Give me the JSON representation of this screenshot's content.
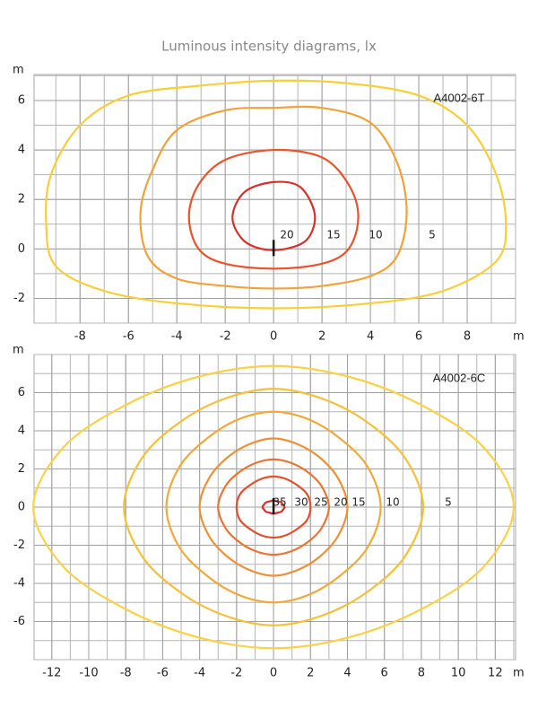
{
  "title": "Luminous intensity diagrams, lx",
  "chart_data": [
    {
      "type": "contour",
      "annotation": "A4002-6T",
      "x_unit": "m",
      "y_unit": "m",
      "xlim": [
        -9.9,
        10
      ],
      "ylim": [
        -3,
        7.05
      ],
      "xticks": [
        -8,
        -6,
        -4,
        -2,
        0,
        2,
        4,
        6,
        8
      ],
      "yticks": [
        -2,
        0,
        2,
        4,
        6
      ],
      "grid_step": 1,
      "contours": [
        {
          "level": 5,
          "color": "#f7cf3a",
          "x": [
            0,
            3,
            6,
            8,
            9.2,
            9.6,
            9.2,
            7,
            4,
            0,
            -4,
            -7,
            -9,
            -9.4,
            -9.2,
            -8,
            -6,
            -3
          ],
          "y": [
            6.8,
            6.7,
            6.2,
            5,
            3,
            1,
            -0.5,
            -1.7,
            -2.2,
            -2.4,
            -2.2,
            -1.7,
            -0.7,
            1,
            3,
            5,
            6.2,
            6.6
          ]
        },
        {
          "level": 10,
          "color": "#f2a23c",
          "x": [
            0,
            2,
            4,
            5.1,
            5.5,
            5.1,
            4,
            2,
            0,
            -2,
            -4,
            -5.2,
            -5.5,
            -5,
            -4,
            -2
          ],
          "y": [
            5.7,
            5.7,
            5.1,
            3.5,
            1.5,
            -0.3,
            -1.1,
            -1.5,
            -1.6,
            -1.5,
            -1.2,
            -0.3,
            1.5,
            3.2,
            4.8,
            5.6
          ]
        },
        {
          "level": 15,
          "color": "#e8552c",
          "x": [
            0,
            2,
            3.1,
            3.5,
            3.1,
            2,
            0,
            -2,
            -3.1,
            -3.5,
            -3.1,
            -2
          ],
          "y": [
            4,
            3.7,
            2.6,
            1.3,
            0,
            -0.6,
            -0.8,
            -0.6,
            0,
            1.3,
            2.6,
            3.6
          ]
        },
        {
          "level": 20,
          "color": "#d8302a",
          "x": [
            0,
            1.1,
            1.7,
            1.4,
            0.5,
            -0.5,
            -1.3,
            -1.7,
            -1.2
          ],
          "y": [
            2.7,
            2.5,
            1.4,
            0.4,
            0,
            0,
            0.4,
            1.3,
            2.3
          ]
        }
      ]
    },
    {
      "type": "contour",
      "annotation": "A4002-6C",
      "x_unit": "m",
      "y_unit": "m",
      "xlim": [
        -12.96,
        13.1
      ],
      "ylim": [
        -8,
        8
      ],
      "xticks": [
        -12,
        -10,
        -8,
        -6,
        -4,
        -2,
        0,
        2,
        4,
        6,
        8,
        10,
        12
      ],
      "yticks": [
        -6,
        -4,
        -2,
        0,
        2,
        4,
        6
      ],
      "grid_step": 1,
      "contours": [
        {
          "level": 5,
          "color": "#f7d24a",
          "x": [
            13,
            11.4,
            8.1,
            4.2,
            0,
            -4.2,
            -8.1,
            -11.4,
            -13,
            -11.4,
            -8.1,
            -4.2,
            0,
            4.2,
            8.1,
            11.4
          ],
          "y": [
            0,
            3.1,
            5.3,
            6.8,
            7.4,
            6.8,
            5.3,
            3.1,
            0,
            -3.1,
            -5.3,
            -6.8,
            -7.4,
            -6.8,
            -5.3,
            -3.1
          ]
        },
        {
          "level": 10,
          "color": "#f5c03a",
          "x": [
            8.1,
            7.1,
            5,
            2.6,
            0,
            -2.6,
            -5,
            -7.1,
            -8.1,
            -7.1,
            -5,
            -2.6,
            0,
            2.6,
            5,
            7.1
          ],
          "y": [
            0,
            2.6,
            4.5,
            5.7,
            6.2,
            5.7,
            4.5,
            2.6,
            0,
            -2.6,
            -4.5,
            -5.7,
            -6.2,
            -5.7,
            -4.5,
            -2.6
          ]
        },
        {
          "level": 15,
          "color": "#f3a83a",
          "x": [
            5.8,
            5.1,
            3.6,
            1.9,
            0,
            -1.9,
            -3.6,
            -5.1,
            -5.8,
            -5.1,
            -3.6,
            -1.9,
            0,
            1.9,
            3.6,
            5.1
          ],
          "y": [
            0,
            2.1,
            3.6,
            4.6,
            5,
            4.6,
            3.6,
            2.1,
            0,
            -2.1,
            -3.6,
            -4.6,
            -5,
            -4.6,
            -3.6,
            -2.1
          ]
        },
        {
          "level": 20,
          "color": "#f09036",
          "x": [
            4,
            3.5,
            2.5,
            1.3,
            0,
            -1.3,
            -2.5,
            -3.5,
            -4,
            -3.5,
            -2.5,
            -1.3,
            0,
            1.3,
            2.5,
            3.5
          ],
          "y": [
            0,
            1.5,
            2.6,
            3.3,
            3.6,
            3.3,
            2.6,
            1.5,
            0,
            -1.5,
            -2.6,
            -3.3,
            -3.6,
            -3.3,
            -2.6,
            -1.5
          ]
        },
        {
          "level": 25,
          "color": "#ec7432",
          "x": [
            3,
            2.6,
            1.9,
            1,
            0,
            -1,
            -1.9,
            -2.6,
            -3,
            -2.6,
            -1.9,
            -1,
            0,
            1,
            1.9,
            2.6
          ],
          "y": [
            0,
            1.1,
            1.8,
            2.3,
            2.5,
            2.3,
            1.8,
            1.1,
            0,
            -1.1,
            -1.8,
            -2.3,
            -2.5,
            -2.3,
            -1.8,
            -1.1
          ]
        },
        {
          "level": 30,
          "color": "#e4502e",
          "x": [
            2,
            1.8,
            1.2,
            0.6,
            0,
            -0.6,
            -1.2,
            -1.8,
            -2,
            -1.8,
            -1.2,
            -0.6,
            0,
            0.6,
            1.2,
            1.8
          ],
          "y": [
            0,
            0.7,
            1.2,
            1.5,
            1.6,
            1.5,
            1.2,
            0.7,
            0,
            -0.7,
            -1.2,
            -1.5,
            -1.6,
            -1.5,
            -1.2,
            -0.7
          ]
        },
        {
          "level": 35,
          "color": "#d8302a",
          "x": [
            0.6,
            0.5,
            0.4,
            0.2,
            0,
            -0.2,
            -0.4,
            -0.5,
            -0.6,
            -0.5,
            -0.4,
            -0.2,
            0,
            0.2,
            0.4,
            0.5
          ],
          "y": [
            0,
            0.15,
            0.25,
            0.3,
            0.35,
            0.3,
            0.25,
            0.15,
            0,
            -0.15,
            -0.25,
            -0.3,
            -0.35,
            -0.3,
            -0.25,
            -0.15
          ]
        }
      ]
    }
  ]
}
